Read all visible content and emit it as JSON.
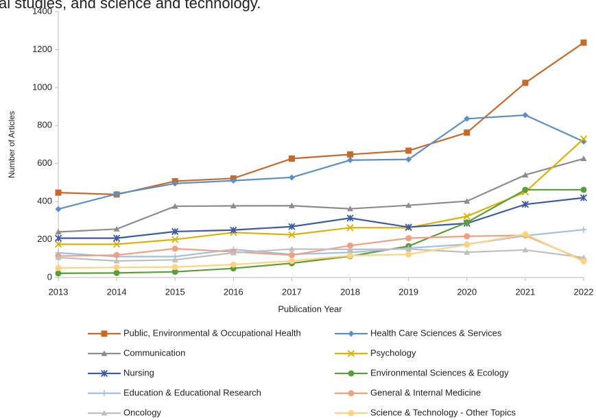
{
  "chart_data": {
    "type": "line",
    "caption": "al studies, and science and technology.",
    "xlabel": "Publication Year",
    "ylabel": "Number of Articles",
    "x": [
      2013,
      2014,
      2015,
      2016,
      2017,
      2018,
      2019,
      2020,
      2021,
      2022
    ],
    "xlim": [
      2013,
      2022
    ],
    "xticks": [
      2013,
      2014,
      2015,
      2016,
      2017,
      2018,
      2019,
      2020,
      2021,
      2022
    ],
    "ylim": [
      0,
      1400
    ],
    "yticks": [
      0,
      200,
      400,
      600,
      800,
      1000,
      1200,
      1400
    ],
    "grid": false,
    "series": [
      {
        "name": "Public, Environmental & Occupational Health",
        "color": "#c8692a",
        "marker": "square",
        "values": [
          447,
          437,
          507,
          522,
          626,
          648,
          668,
          763,
          1025,
          1237
        ]
      },
      {
        "name": "Health Care Sciences & Services",
        "color": "#5b8fc7",
        "marker": "diamond",
        "values": [
          360,
          440,
          495,
          510,
          527,
          618,
          622,
          836,
          855,
          716
        ]
      },
      {
        "name": "Communication",
        "color": "#8c8c8c",
        "marker": "triangle",
        "values": [
          240,
          255,
          375,
          377,
          378,
          362,
          380,
          402,
          540,
          626
        ]
      },
      {
        "name": "Psychology",
        "color": "#e0b000",
        "marker": "x",
        "values": [
          175,
          175,
          200,
          237,
          225,
          262,
          262,
          322,
          450,
          730
        ]
      },
      {
        "name": "Nursing",
        "color": "#3b5ba8",
        "marker": "star",
        "values": [
          207,
          207,
          242,
          250,
          268,
          313,
          265,
          285,
          385,
          420
        ]
      },
      {
        "name": "Environmental Sciences & Ecology",
        "color": "#5a9e3a",
        "marker": "circle",
        "values": [
          22,
          24,
          30,
          48,
          75,
          112,
          165,
          290,
          462,
          462
        ]
      },
      {
        "name": "Education & Educational Research",
        "color": "#9fc0e8",
        "marker": "plus",
        "values": [
          130,
          110,
          110,
          148,
          122,
          132,
          155,
          175,
          220,
          252
        ]
      },
      {
        "name": "General & Internal Medicine",
        "color": "#f0a080",
        "marker": "circle",
        "values": [
          113,
          118,
          152,
          135,
          118,
          168,
          207,
          217,
          222,
          90
        ]
      },
      {
        "name": "Oncology",
        "color": "#bfbfbf",
        "marker": "triangle",
        "values": [
          105,
          87,
          93,
          130,
          150,
          148,
          150,
          133,
          145,
          105
        ]
      },
      {
        "name": "Science & Technology - Other Topics",
        "color": "#ffd27f",
        "marker": "circle",
        "values": [
          50,
          53,
          55,
          68,
          87,
          115,
          122,
          173,
          228,
          85
        ]
      }
    ]
  }
}
